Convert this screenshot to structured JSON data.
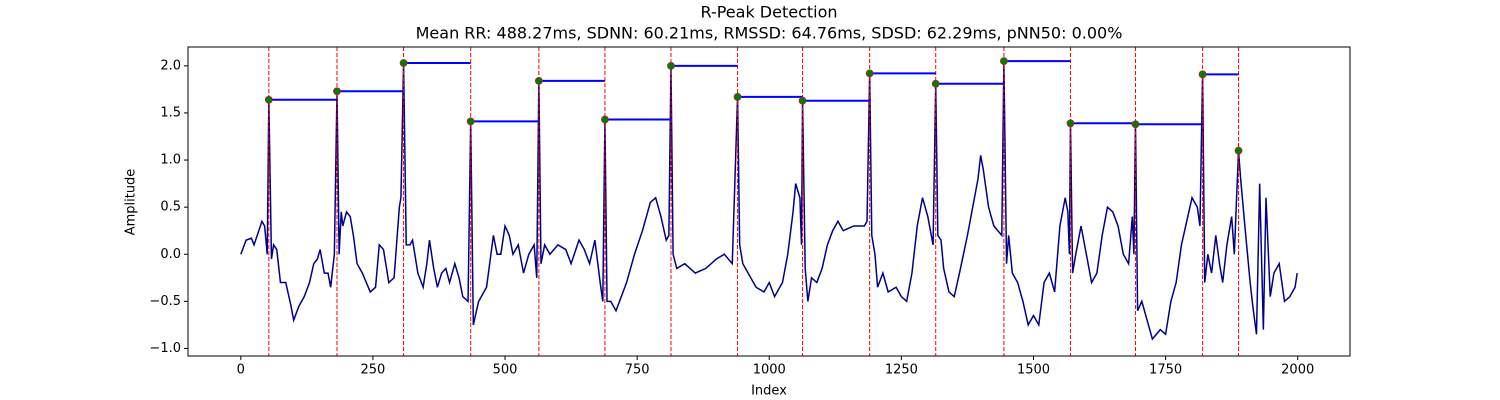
{
  "chart_data": {
    "type": "line",
    "title": "R-Peak Detection",
    "subtitle": "Mean RR: 488.27ms, SDNN: 60.21ms, RMSSD: 64.76ms, SDSD: 62.29ms, pNN50: 0.00%",
    "xlabel": "Index",
    "ylabel": "Amplitude",
    "xlim": [
      -99.95,
      2098.95
    ],
    "ylim": [
      -1.08,
      2.2
    ],
    "xticks": [
      0,
      250,
      500,
      750,
      1000,
      1250,
      1500,
      1750,
      2000
    ],
    "yticks": [
      {
        "value": -1.0,
        "label": "−1.0"
      },
      {
        "value": -0.5,
        "label": "−0.5"
      },
      {
        "value": 0.0,
        "label": "0.0"
      },
      0.5,
      {
        "value": 1.0,
        "label": "1.0"
      },
      1.5,
      {
        "value": 2.0,
        "label": "2.0"
      }
    ],
    "series": [
      {
        "style": "line",
        "color": "#00008b",
        "x": [
          0,
          10,
          20,
          25,
          40,
          45,
          50,
          53,
          58,
          62,
          68,
          75,
          85,
          95,
          100,
          110,
          120,
          130,
          138,
          145,
          150,
          158,
          165,
          170,
          177,
          182,
          186,
          190,
          193,
          200,
          207,
          213,
          220,
          230,
          245,
          255,
          262,
          270,
          280,
          290,
          300,
          303,
          308,
          313,
          320,
          325,
          335,
          345,
          352,
          357,
          365,
          372,
          380,
          388,
          395,
          405,
          413,
          420,
          430,
          435,
          440,
          450,
          465,
          478,
          485,
          492,
          500,
          508,
          515,
          525,
          535,
          545,
          555,
          560,
          564,
          568,
          575,
          585,
          600,
          615,
          625,
          640,
          650,
          660,
          670,
          680,
          685,
          689,
          693,
          700,
          710,
          720,
          730,
          745,
          760,
          775,
          785,
          795,
          805,
          810,
          814,
          818,
          825,
          840,
          860,
          880,
          900,
          915,
          930,
          940,
          944,
          950,
          960,
          975,
          990,
          1000,
          1010,
          1025,
          1035,
          1045,
          1050,
          1058,
          1061,
          1063,
          1068,
          1073,
          1080,
          1090,
          1100,
          1110,
          1120,
          1130,
          1140,
          1160,
          1180,
          1185,
          1190,
          1194,
          1200,
          1205,
          1215,
          1225,
          1240,
          1250,
          1260,
          1270,
          1280,
          1290,
          1300,
          1310,
          1315,
          1319,
          1325,
          1330,
          1340,
          1350,
          1360,
          1375,
          1385,
          1395,
          1400,
          1405,
          1415,
          1425,
          1440,
          1444,
          1449,
          1453,
          1460,
          1470,
          1480,
          1490,
          1500,
          1510,
          1520,
          1530,
          1540,
          1550,
          1560,
          1565,
          1568,
          1570,
          1574,
          1580,
          1590,
          1600,
          1610,
          1620,
          1630,
          1640,
          1650,
          1660,
          1670,
          1680,
          1687,
          1690,
          1693,
          1697,
          1705,
          1715,
          1725,
          1740,
          1750,
          1760,
          1770,
          1780,
          1800,
          1810,
          1815,
          1820,
          1824,
          1830,
          1837,
          1845,
          1852,
          1858,
          1866,
          1875,
          1880,
          1888,
          1892,
          1900,
          1910,
          1915,
          1922,
          1928,
          1935,
          1940,
          1948,
          1955,
          1965,
          1975,
          1985,
          1995,
          1999
        ],
        "values": [
          0.0,
          0.15,
          0.17,
          0.1,
          0.35,
          0.3,
          0.0,
          1.64,
          -0.05,
          0.1,
          0.05,
          -0.3,
          -0.3,
          -0.55,
          -0.7,
          -0.55,
          -0.45,
          -0.3,
          -0.1,
          -0.05,
          0.05,
          -0.2,
          -0.2,
          -0.35,
          0.0,
          1.73,
          0.0,
          0.45,
          0.3,
          0.45,
          0.4,
          0.2,
          -0.1,
          -0.2,
          -0.4,
          -0.35,
          0.1,
          0.05,
          -0.3,
          -0.25,
          0.5,
          0.6,
          2.03,
          0.1,
          0.1,
          0.15,
          -0.2,
          -0.35,
          -0.1,
          0.15,
          -0.15,
          -0.35,
          -0.2,
          -0.15,
          -0.3,
          -0.1,
          -0.25,
          -0.45,
          -0.5,
          1.41,
          -0.75,
          -0.5,
          -0.35,
          0.2,
          0.0,
          0.0,
          0.3,
          0.2,
          0.0,
          0.1,
          -0.2,
          0.0,
          0.1,
          -0.25,
          1.84,
          -0.1,
          0.1,
          0.0,
          0.1,
          0.05,
          -0.1,
          0.15,
          0.05,
          -0.1,
          0.15,
          -0.3,
          -0.5,
          1.43,
          -0.5,
          -0.5,
          -0.6,
          -0.45,
          -0.3,
          0.0,
          0.25,
          0.55,
          0.6,
          0.4,
          0.15,
          0.2,
          2.0,
          0.0,
          -0.15,
          -0.1,
          -0.2,
          -0.15,
          -0.05,
          0.0,
          -0.1,
          1.67,
          0.1,
          -0.1,
          -0.2,
          -0.35,
          -0.4,
          -0.3,
          -0.45,
          -0.3,
          0.0,
          0.45,
          0.75,
          0.6,
          0.1,
          1.63,
          -0.15,
          -0.5,
          -0.25,
          -0.3,
          -0.15,
          0.1,
          0.25,
          0.35,
          0.25,
          0.3,
          0.3,
          0.35,
          1.92,
          0.2,
          0.0,
          -0.35,
          -0.2,
          -0.4,
          -0.35,
          -0.45,
          -0.5,
          -0.2,
          0.3,
          0.6,
          0.4,
          0.1,
          1.81,
          0.2,
          0.15,
          -0.15,
          -0.4,
          -0.45,
          -0.2,
          0.2,
          0.5,
          0.8,
          1.05,
          0.9,
          0.5,
          0.3,
          0.2,
          2.05,
          -0.1,
          0.2,
          -0.2,
          -0.3,
          -0.5,
          -0.75,
          -0.65,
          -0.75,
          -0.3,
          -0.2,
          -0.4,
          0.3,
          0.6,
          0.45,
          0.0,
          1.39,
          -0.2,
          0.0,
          0.3,
          0.0,
          -0.3,
          -0.2,
          0.2,
          0.5,
          0.45,
          0.3,
          0.0,
          -0.1,
          0.4,
          0.0,
          1.38,
          -0.6,
          -0.5,
          -0.7,
          -0.9,
          -0.8,
          -0.85,
          -0.5,
          -0.3,
          0.1,
          0.6,
          0.5,
          0.3,
          1.91,
          -0.3,
          0.0,
          -0.2,
          0.2,
          -0.1,
          -0.3,
          0.1,
          0.4,
          0.0,
          1.1,
          0.8,
          0.3,
          -0.3,
          -0.55,
          -0.85,
          0.75,
          -0.8,
          0.6,
          -0.45,
          -0.2,
          -0.1,
          -0.5,
          -0.45,
          -0.35,
          -0.2
        ]
      },
      {
        "style": "peaks",
        "color": "green",
        "edge_color": "#b22222",
        "vline_color": "red",
        "rr_line_color": "blue",
        "x": [
          53,
          182,
          308,
          435,
          564,
          689,
          814,
          940,
          1063,
          1190,
          1315,
          1444,
          1570,
          1693,
          1820,
          1888
        ],
        "values": [
          1.64,
          1.73,
          2.03,
          1.41,
          1.84,
          1.43,
          2.0,
          1.67,
          1.63,
          1.92,
          1.81,
          2.05,
          1.39,
          1.38,
          1.91,
          1.1
        ]
      }
    ]
  }
}
